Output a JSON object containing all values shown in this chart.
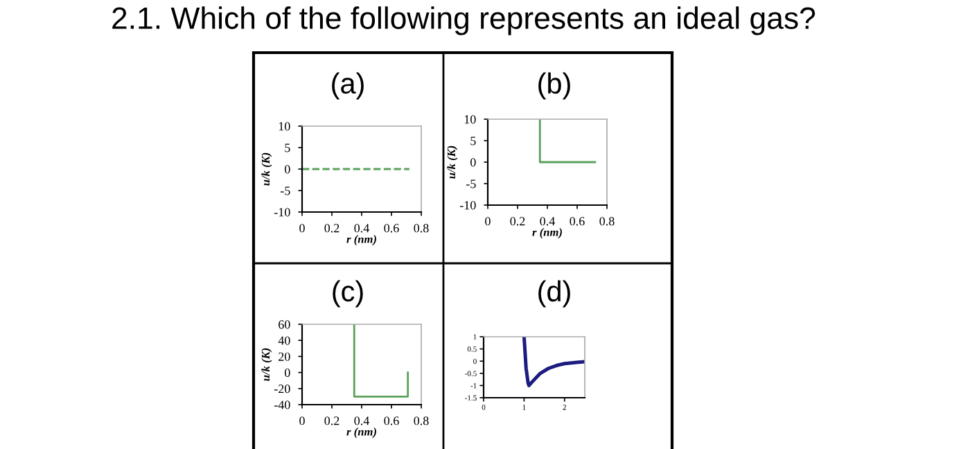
{
  "chart_data": [
    {
      "type": "line",
      "title": "(a)",
      "annotations": [
        "2.1. Which of the following represents an ideal gas?"
      ],
      "xlabel": "r (nm)",
      "ylabel": "u/k (K)",
      "xlim": [
        0,
        0.8
      ],
      "ylim": [
        -10,
        10
      ],
      "xticks": [
        0,
        0.2,
        0.4,
        0.6,
        0.8
      ],
      "yticks": [
        -10,
        -5,
        0,
        5,
        10
      ],
      "line_style": "dashed",
      "grid": false,
      "series": [
        {
          "color": "#5aa05a",
          "x": [
            0,
            0.72
          ],
          "values": [
            0,
            0
          ]
        }
      ]
    },
    {
      "type": "line",
      "title": "(b)",
      "xlabel": "r (nm)",
      "ylabel": "u/k (K)",
      "xlim": [
        0,
        0.8
      ],
      "ylim": [
        -10,
        10
      ],
      "xticks": [
        0,
        0.2,
        0.4,
        0.6,
        0.8
      ],
      "yticks": [
        -10,
        -5,
        0,
        5,
        10
      ],
      "line_style": "solid",
      "grid": false,
      "series": [
        {
          "color": "#5aa05a",
          "x": [
            0.35,
            0.35,
            0.72
          ],
          "values": [
            10,
            0,
            0
          ]
        }
      ]
    },
    {
      "type": "line",
      "title": "(c)",
      "xlabel": "r (nm)",
      "ylabel": "u/k (K)",
      "xlim": [
        0,
        0.8
      ],
      "ylim": [
        -40,
        60
      ],
      "xticks": [
        0,
        0.2,
        0.4,
        0.6,
        0.8
      ],
      "yticks": [
        -40,
        -20,
        0,
        20,
        40,
        60
      ],
      "line_style": "solid",
      "grid": false,
      "series": [
        {
          "color": "#5aa05a",
          "x": [
            0.35,
            0.35,
            0.71,
            0.71
          ],
          "values": [
            60,
            -30,
            -30,
            0
          ]
        }
      ]
    },
    {
      "type": "line",
      "title": "(d)",
      "xlim": [
        0,
        2.5
      ],
      "ylim": [
        -1.5,
        1
      ],
      "xticks": [
        0,
        1,
        2
      ],
      "yticks": [
        -1.5,
        -1,
        -0.5,
        0,
        0.5,
        1
      ],
      "line_style": "solid",
      "grid": false,
      "series": [
        {
          "color": "#1c1c80",
          "x": [
            1.0,
            1.05,
            1.1,
            1.12,
            1.2,
            1.4,
            1.6,
            1.8,
            2.0,
            2.3,
            2.5
          ],
          "values": [
            1.0,
            -0.3,
            -0.9,
            -1.0,
            -0.85,
            -0.5,
            -0.3,
            -0.18,
            -0.1,
            -0.05,
            -0.02
          ]
        }
      ]
    }
  ]
}
